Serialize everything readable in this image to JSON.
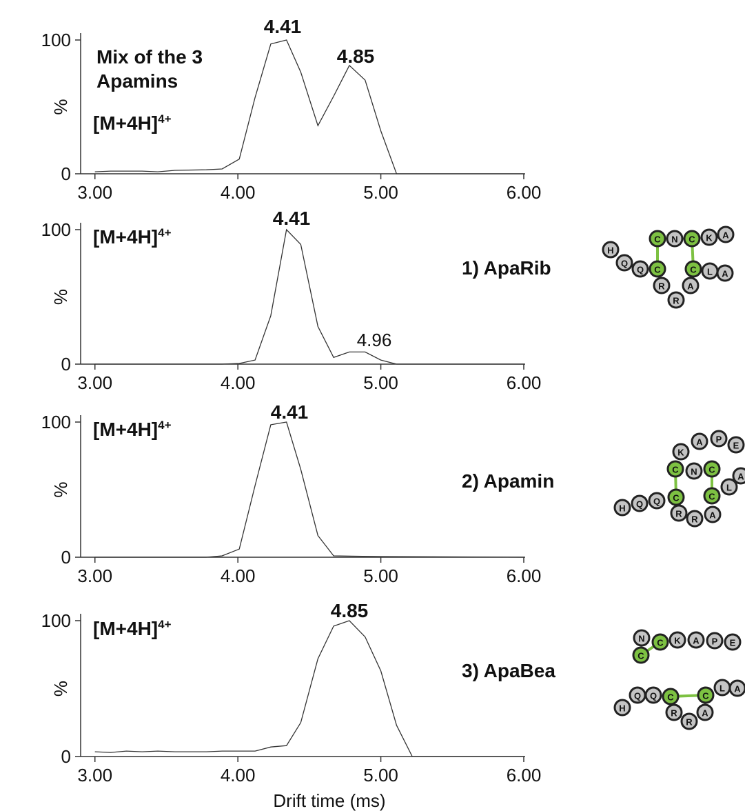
{
  "chart_data": [
    {
      "type": "line",
      "title": [
        "Mix of the 3",
        "Apamins"
      ],
      "ion_label": {
        "base": "[M+4H]",
        "charge": "4+"
      },
      "x": [
        3.0,
        3.11,
        3.33,
        3.44,
        3.56,
        3.78,
        3.89,
        4.01,
        4.12,
        4.23,
        4.34,
        4.44,
        4.56,
        4.67,
        4.78,
        4.89,
        5.0,
        5.11,
        6.0
      ],
      "values": [
        1.5,
        2,
        2,
        1.5,
        2.6,
        3,
        3.6,
        11,
        57,
        97,
        100,
        76,
        36,
        58,
        81,
        70,
        32,
        0,
        0
      ],
      "color": "#333333",
      "peak_labels": [
        "4.41",
        "4.85"
      ],
      "ylabel": "%",
      "xlim": [
        2.9,
        6.0
      ],
      "ylim": [
        0,
        100
      ],
      "xticks": [
        {
          "value": 3,
          "label": "3.00"
        },
        {
          "value": 4,
          "label": "4.00"
        },
        {
          "value": 5,
          "label": "5.00"
        },
        {
          "value": 6,
          "label": "6.00"
        }
      ],
      "yticks": [
        0,
        100
      ]
    },
    {
      "type": "line",
      "title": "1) ApaRib",
      "ion_label": {
        "base": "[M+4H]",
        "charge": "4+"
      },
      "x": [
        3.0,
        3.89,
        4.01,
        4.12,
        4.23,
        4.34,
        4.44,
        4.56,
        4.67,
        4.78,
        4.89,
        5.0,
        5.11,
        6.0
      ],
      "values": [
        0,
        0,
        0.5,
        3,
        36,
        100,
        89,
        28,
        5,
        9,
        9,
        3,
        0,
        0
      ],
      "color": "#333333",
      "peak_labels": [
        "4.41",
        "4.96"
      ],
      "ylabel": "%",
      "xlim": [
        2.9,
        6.0
      ],
      "ylim": [
        0,
        100
      ],
      "xticks": [
        {
          "value": 3,
          "label": "3.00"
        },
        {
          "value": 4,
          "label": "4.00"
        },
        {
          "value": 5,
          "label": "5.00"
        },
        {
          "value": 6,
          "label": "6.00"
        }
      ],
      "yticks": [
        0,
        100
      ],
      "residues": [
        {
          "label": "H",
          "color": "#c4c4c4"
        },
        {
          "label": "Q",
          "color": "#c4c4c4"
        },
        {
          "label": "Q",
          "color": "#c4c4c4"
        },
        {
          "label": "C",
          "color": "#7dc142"
        },
        {
          "label": "R",
          "color": "#c4c4c4"
        },
        {
          "label": "R",
          "color": "#c4c4c4"
        },
        {
          "label": "A",
          "color": "#c4c4c4"
        },
        {
          "label": "C",
          "color": "#7dc142"
        },
        {
          "label": "L",
          "color": "#c4c4c4"
        },
        {
          "label": "A",
          "color": "#c4c4c4"
        },
        {
          "label": "C",
          "color": "#7dc142"
        },
        {
          "label": "N",
          "color": "#c4c4c4"
        },
        {
          "label": "C",
          "color": "#7dc142"
        },
        {
          "label": "K",
          "color": "#c4c4c4"
        },
        {
          "label": "A",
          "color": "#c4c4c4"
        }
      ]
    },
    {
      "type": "line",
      "title": "2) Apamin",
      "ion_label": {
        "base": "[M+4H]",
        "charge": "4+"
      },
      "x": [
        3.0,
        3.78,
        3.89,
        4.01,
        4.12,
        4.23,
        4.34,
        4.44,
        4.56,
        4.67,
        5.0,
        6.0
      ],
      "values": [
        0,
        0,
        1,
        6,
        53,
        98,
        100,
        65,
        16,
        1,
        0.5,
        0
      ],
      "color": "#333333",
      "peak_labels": [
        "4.41"
      ],
      "ylabel": "%",
      "xlim": [
        2.9,
        6.0
      ],
      "ylim": [
        0,
        100
      ],
      "xticks": [
        {
          "value": 3,
          "label": "3.00"
        },
        {
          "value": 4,
          "label": "4.00"
        },
        {
          "value": 5,
          "label": "5.00"
        },
        {
          "value": 6,
          "label": "6.00"
        }
      ],
      "yticks": [
        0,
        100
      ],
      "residues": [
        {
          "label": "H",
          "color": "#c4c4c4"
        },
        {
          "label": "Q",
          "color": "#c4c4c4"
        },
        {
          "label": "Q",
          "color": "#c4c4c4"
        },
        {
          "label": "C",
          "color": "#7dc142"
        },
        {
          "label": "R",
          "color": "#c4c4c4"
        },
        {
          "label": "R",
          "color": "#c4c4c4"
        },
        {
          "label": "A",
          "color": "#c4c4c4"
        },
        {
          "label": "C",
          "color": "#7dc142"
        },
        {
          "label": "L",
          "color": "#c4c4c4"
        },
        {
          "label": "A",
          "color": "#c4c4c4"
        },
        {
          "label": "K",
          "color": "#c4c4c4"
        },
        {
          "label": "A",
          "color": "#c4c4c4"
        },
        {
          "label": "P",
          "color": "#c4c4c4"
        },
        {
          "label": "E",
          "color": "#c4c4c4"
        },
        {
          "label": "C",
          "color": "#7dc142"
        },
        {
          "label": "N",
          "color": "#c4c4c4"
        },
        {
          "label": "C",
          "color": "#7dc142"
        }
      ]
    },
    {
      "type": "line",
      "title": "3) ApaBea",
      "ion_label": {
        "base": "[M+4H]",
        "charge": "4+"
      },
      "x": [
        3.0,
        3.11,
        3.22,
        3.33,
        3.44,
        3.56,
        3.67,
        3.78,
        3.89,
        4.01,
        4.12,
        4.23,
        4.34,
        4.44,
        4.56,
        4.67,
        4.78,
        4.89,
        5.0,
        5.11,
        5.22,
        6.0
      ],
      "values": [
        3.5,
        3,
        4,
        3.5,
        4,
        3.5,
        3.5,
        3.5,
        4,
        4,
        4,
        7,
        8,
        25,
        72,
        96,
        100,
        88,
        63,
        23,
        0,
        0
      ],
      "color": "#333333",
      "peak_labels": [
        "4.85"
      ],
      "ylabel": "%",
      "xlabel": "Drift time (ms)",
      "xlim": [
        2.9,
        6.0
      ],
      "ylim": [
        0,
        100
      ],
      "xticks": [
        {
          "value": 3,
          "label": "3.00"
        },
        {
          "value": 4,
          "label": "4.00"
        },
        {
          "value": 5,
          "label": "5.00"
        },
        {
          "value": 6,
          "label": "6.00"
        }
      ],
      "yticks": [
        0,
        100
      ],
      "residues": [
        {
          "label": "N",
          "color": "#c4c4c4"
        },
        {
          "label": "C",
          "color": "#7dc142"
        },
        {
          "label": "K",
          "color": "#c4c4c4"
        },
        {
          "label": "A",
          "color": "#c4c4c4"
        },
        {
          "label": "P",
          "color": "#c4c4c4"
        },
        {
          "label": "E",
          "color": "#c4c4c4"
        },
        {
          "label": "C",
          "color": "#7dc142"
        },
        {
          "label": "H",
          "color": "#c4c4c4"
        },
        {
          "label": "Q",
          "color": "#c4c4c4"
        },
        {
          "label": "Q",
          "color": "#c4c4c4"
        },
        {
          "label": "C",
          "color": "#7dc142"
        },
        {
          "label": "R",
          "color": "#c4c4c4"
        },
        {
          "label": "R",
          "color": "#c4c4c4"
        },
        {
          "label": "A",
          "color": "#c4c4c4"
        },
        {
          "label": "C",
          "color": "#7dc142"
        },
        {
          "label": "L",
          "color": "#c4c4c4"
        },
        {
          "label": "A",
          "color": "#c4c4c4"
        }
      ]
    }
  ]
}
